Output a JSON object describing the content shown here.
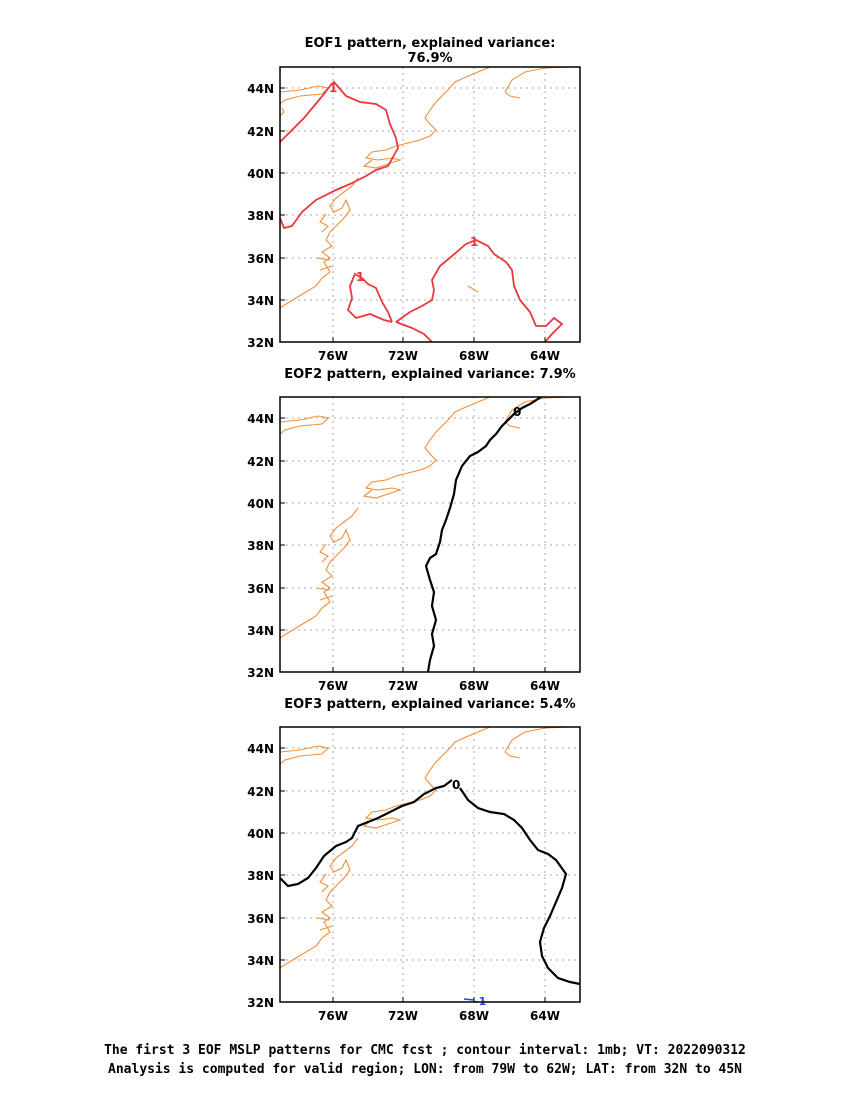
{
  "panels": [
    {
      "title": "EOF1 pattern, explained variance: 76.9%",
      "contour_color": "#e8383c",
      "contour_labels": [
        "1",
        "1",
        "1"
      ]
    },
    {
      "title": "EOF2 pattern, explained variance: 7.9%",
      "contour_color": "#000000",
      "contour_labels": [
        "0"
      ]
    },
    {
      "title": "EOF3 pattern, explained variance: 5.4%",
      "contour_color": "#000000",
      "contour_labels": [
        "0",
        "-1"
      ]
    }
  ],
  "axes": {
    "lat_ticks": [
      "32N",
      "34N",
      "36N",
      "38N",
      "40N",
      "42N",
      "44N"
    ],
    "lon_ticks": [
      "76W",
      "72W",
      "68W",
      "64W"
    ]
  },
  "colors": {
    "coastline": "#f0903a",
    "gridline": "#aaaaaa",
    "negative_contour": "#2040ff"
  },
  "caption": {
    "line1": "The first 3 EOF MSLP patterns for CMC fcst ; contour interval: 1mb; VT: 2022090312",
    "line2": "Analysis is computed for valid region; LON: from 79W to 62W; LAT: from 32N to 45N"
  }
}
